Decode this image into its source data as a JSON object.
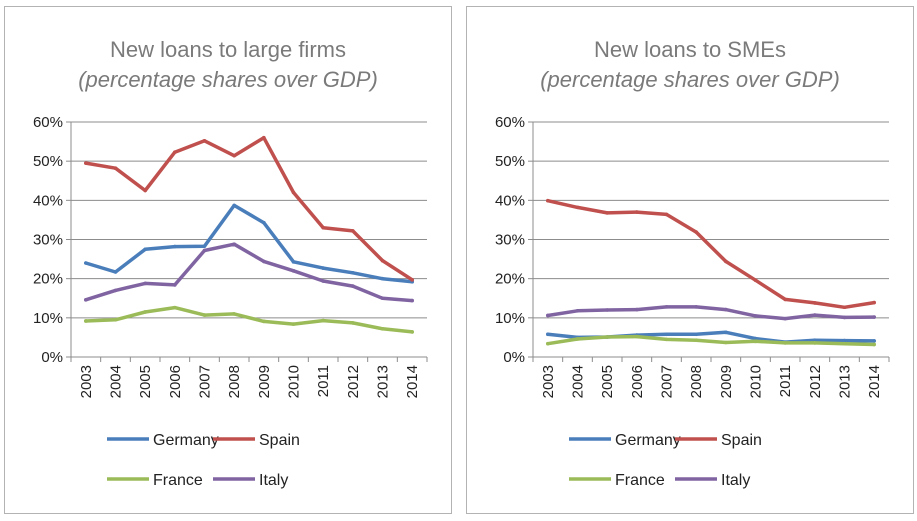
{
  "chart_data": [
    {
      "type": "line",
      "title": "New loans to large firms",
      "subtitle": "(percentage shares over GDP)",
      "xlabel": "",
      "ylabel": "",
      "categories": [
        "2003",
        "2004",
        "2005",
        "2006",
        "2007",
        "2008",
        "2009",
        "2010",
        "2011",
        "2012",
        "2013",
        "2014"
      ],
      "ylim": [
        0,
        60
      ],
      "yticks": [
        "0%",
        "10%",
        "20%",
        "30%",
        "40%",
        "50%",
        "60%"
      ],
      "grid": true,
      "legend": "bottom",
      "series": [
        {
          "name": "Germany",
          "color": "#4a7ebb",
          "values": [
            24,
            21.7,
            27.5,
            28.2,
            28.3,
            38.7,
            34.3,
            24.3,
            22.7,
            21.5,
            20,
            19.2
          ]
        },
        {
          "name": "Spain",
          "color": "#c0504d",
          "values": [
            49.5,
            48.2,
            42.5,
            52.3,
            55.2,
            51.4,
            56,
            42,
            33,
            32.2,
            24.6,
            19.7
          ]
        },
        {
          "name": "France",
          "color": "#9bbb59",
          "values": [
            9.2,
            9.5,
            11.5,
            12.6,
            10.7,
            11,
            9.1,
            8.4,
            9.3,
            8.7,
            7.2,
            6.4
          ]
        },
        {
          "name": "Italy",
          "color": "#8064a2",
          "values": [
            14.6,
            17,
            18.8,
            18.4,
            27.2,
            28.8,
            24.4,
            22,
            19.4,
            18.1,
            15,
            14.4
          ]
        }
      ]
    },
    {
      "type": "line",
      "title": "New loans to SMEs",
      "subtitle": "(percentage shares over GDP)",
      "xlabel": "",
      "ylabel": "",
      "categories": [
        "2003",
        "2004",
        "2005",
        "2006",
        "2007",
        "2008",
        "2009",
        "2010",
        "2011",
        "2012",
        "2013",
        "2014"
      ],
      "ylim": [
        0,
        60
      ],
      "yticks": [
        "0%",
        "10%",
        "20%",
        "30%",
        "40%",
        "50%",
        "60%"
      ],
      "grid": true,
      "legend": "bottom",
      "series": [
        {
          "name": "Germany",
          "color": "#4a7ebb",
          "values": [
            5.8,
            5,
            5.1,
            5.6,
            5.8,
            5.8,
            6.3,
            4.7,
            3.8,
            4.3,
            4.2,
            4.1
          ]
        },
        {
          "name": "Spain",
          "color": "#c0504d",
          "values": [
            39.9,
            38.2,
            36.8,
            37,
            36.4,
            31.9,
            24.4,
            19.6,
            14.7,
            13.8,
            12.7,
            13.9
          ]
        },
        {
          "name": "France",
          "color": "#9bbb59",
          "values": [
            3.4,
            4.6,
            5.1,
            5.2,
            4.5,
            4.3,
            3.7,
            4,
            3.6,
            3.6,
            3.4,
            3.2
          ]
        },
        {
          "name": "Italy",
          "color": "#8064a2",
          "values": [
            10.6,
            11.8,
            12,
            12.1,
            12.8,
            12.8,
            12.1,
            10.5,
            9.8,
            10.7,
            10.1,
            10.2
          ]
        }
      ]
    }
  ]
}
